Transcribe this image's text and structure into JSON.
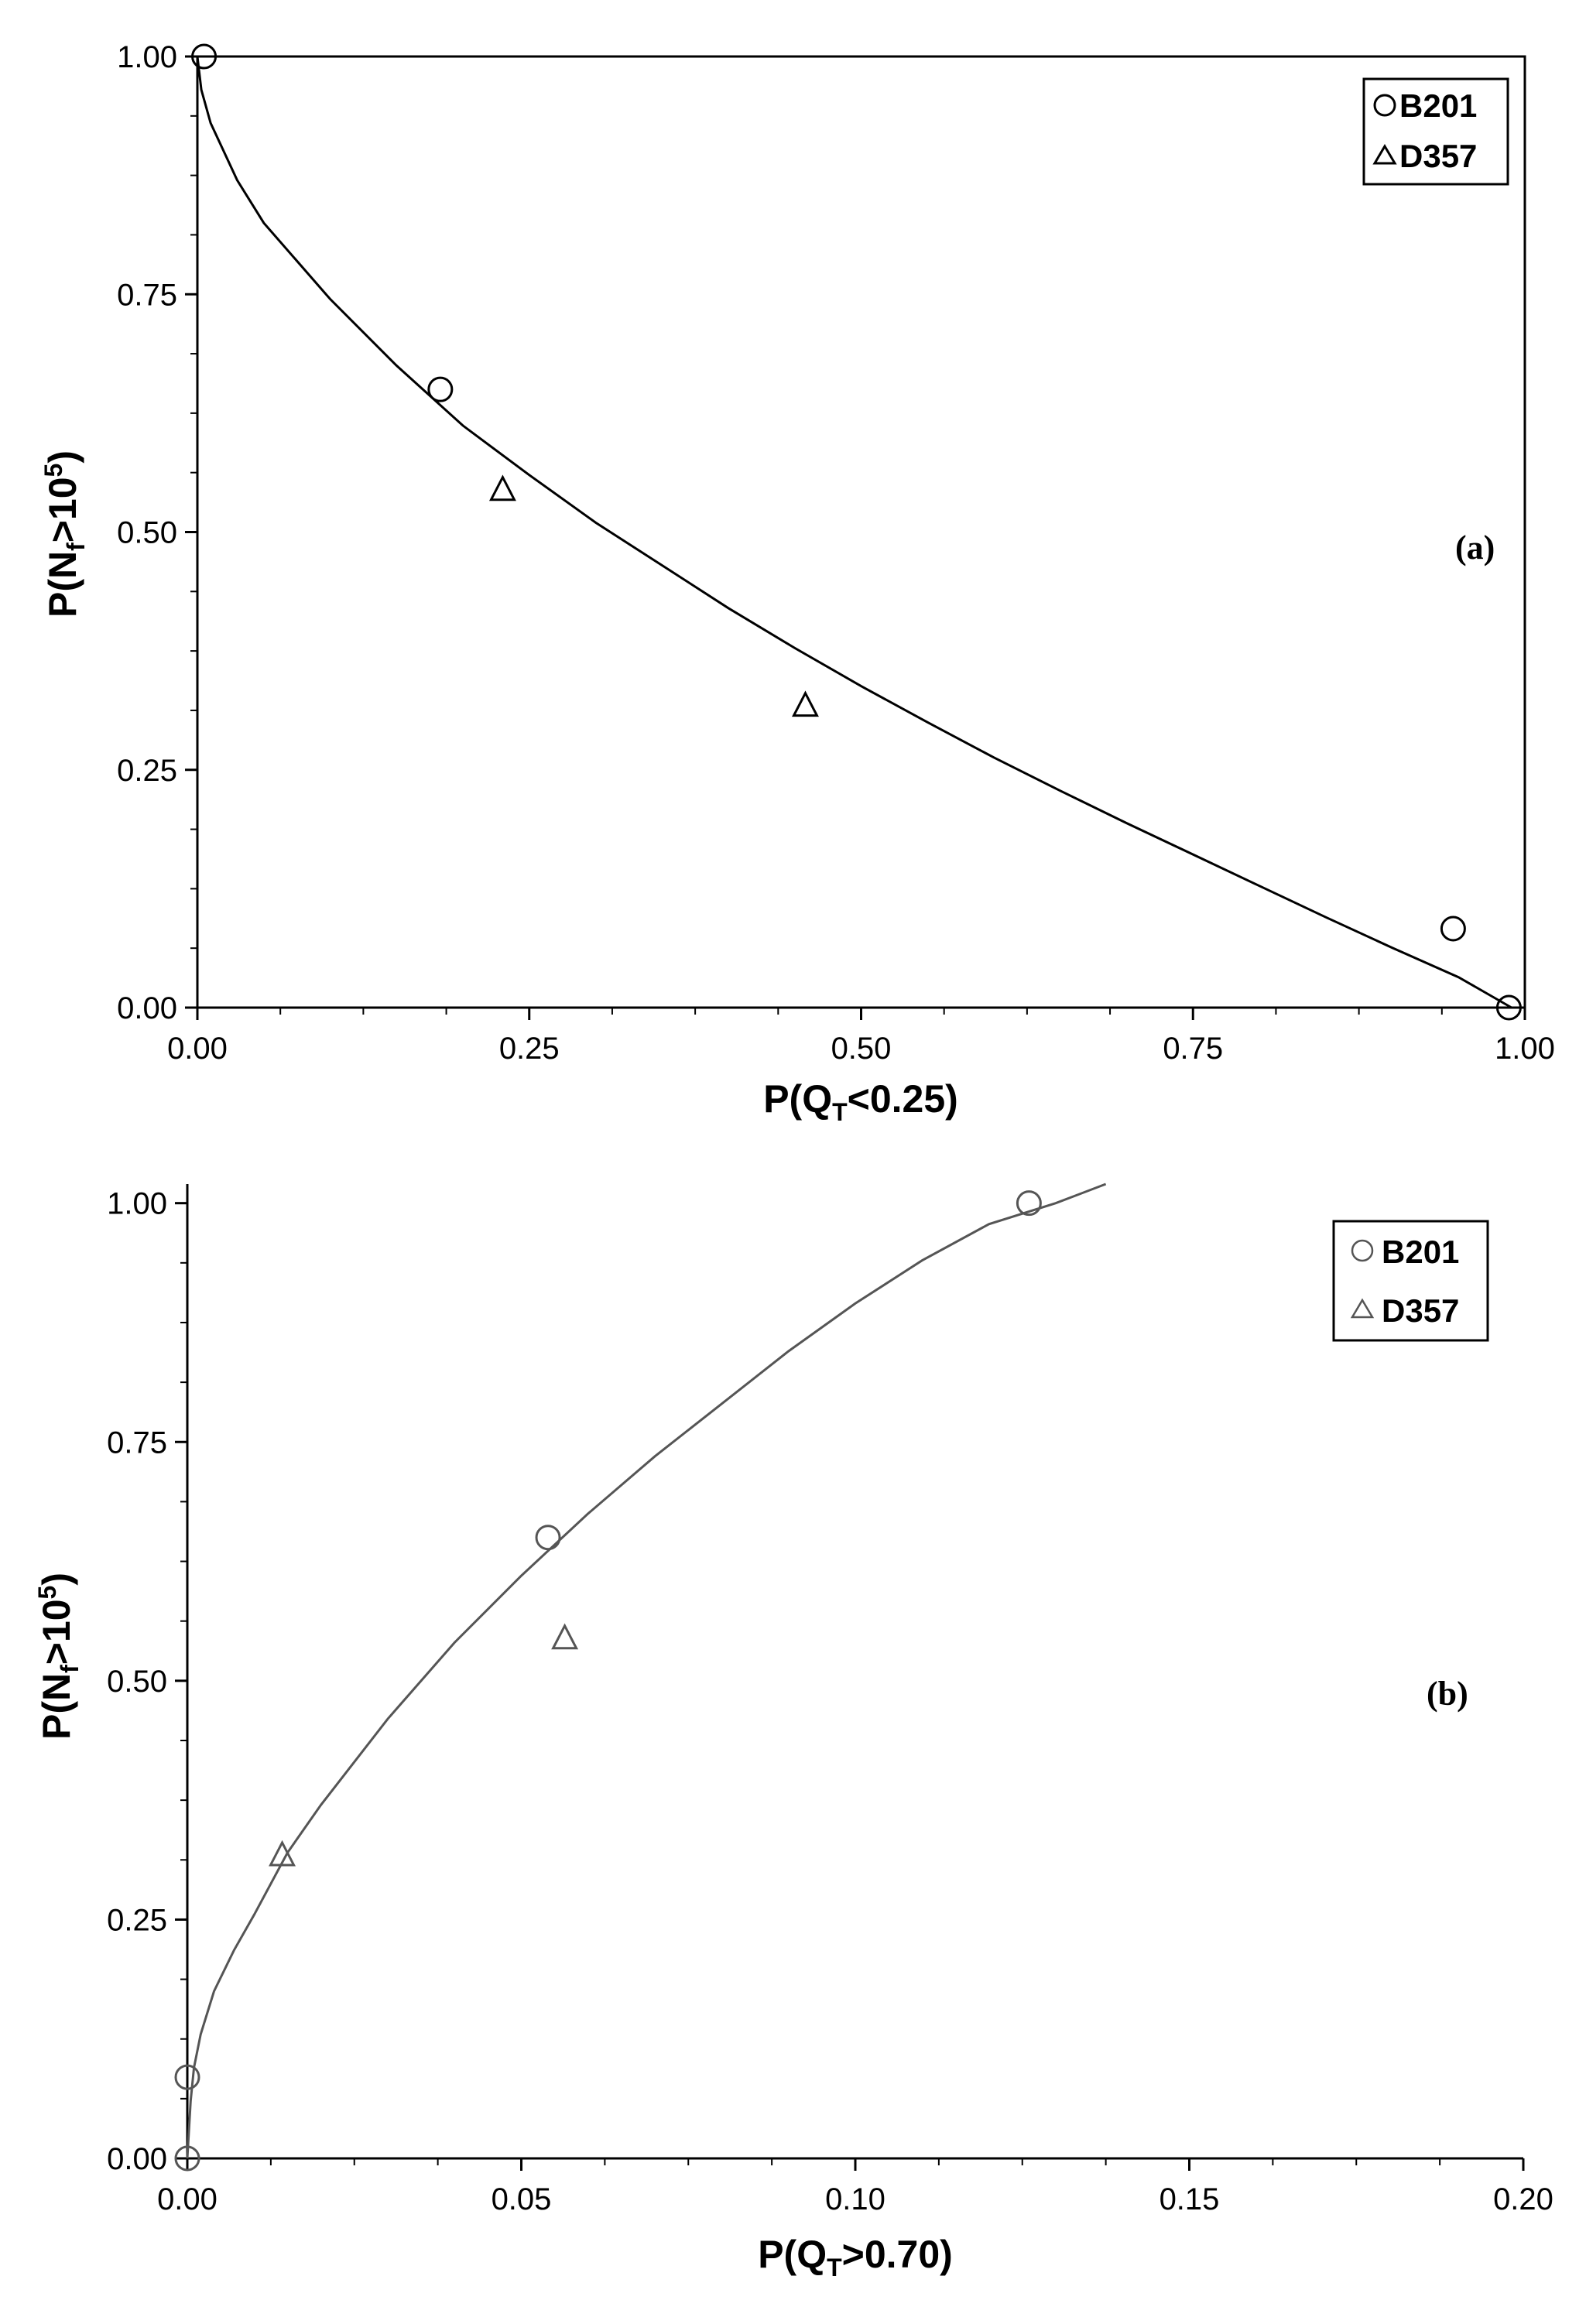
{
  "chart_data": [
    {
      "id": "a",
      "type": "scatter",
      "panel_label": "(a)",
      "xlabel": {
        "main": "P(Q",
        "sub": "T",
        "tail": "<0.25)"
      },
      "ylabel": {
        "main": "P(N",
        "sub": "f",
        "mid": ">10",
        "sup": "5",
        "tail": ")"
      },
      "xlim": [
        0,
        1
      ],
      "ylim": [
        0,
        1
      ],
      "xticks": [
        "0.00",
        "0.25",
        "0.50",
        "0.75",
        "1.00"
      ],
      "yticks": [
        "0.00",
        "0.25",
        "0.50",
        "0.75",
        "1.00"
      ],
      "grid": false,
      "legend_position": "top-right",
      "series": [
        {
          "name": "B201",
          "marker": "circle",
          "points": [
            [
              0.005,
              1.0
            ],
            [
              0.183,
              0.65
            ],
            [
              0.946,
              0.083
            ],
            [
              0.988,
              0.0
            ]
          ]
        },
        {
          "name": "D357",
          "marker": "triangle",
          "points": [
            [
              0.23,
              0.545
            ],
            [
              0.458,
              0.318
            ]
          ]
        }
      ],
      "fit_curve": [
        [
          0,
          1.0
        ],
        [
          0.003,
          0.965
        ],
        [
          0.01,
          0.93
        ],
        [
          0.03,
          0.87
        ],
        [
          0.05,
          0.825
        ],
        [
          0.1,
          0.745
        ],
        [
          0.15,
          0.675
        ],
        [
          0.2,
          0.612
        ],
        [
          0.25,
          0.56
        ],
        [
          0.3,
          0.51
        ],
        [
          0.35,
          0.465
        ],
        [
          0.4,
          0.42
        ],
        [
          0.45,
          0.378
        ],
        [
          0.5,
          0.338
        ],
        [
          0.55,
          0.3
        ],
        [
          0.6,
          0.263
        ],
        [
          0.65,
          0.228
        ],
        [
          0.7,
          0.194
        ],
        [
          0.75,
          0.161
        ],
        [
          0.8,
          0.128
        ],
        [
          0.85,
          0.095
        ],
        [
          0.9,
          0.063
        ],
        [
          0.95,
          0.032
        ],
        [
          0.99,
          0.0
        ]
      ]
    },
    {
      "id": "b",
      "type": "scatter",
      "panel_label": "(b)",
      "xlabel": {
        "main": "P(Q",
        "sub": "T",
        "tail": ">0.70)"
      },
      "ylabel": {
        "main": "P(N",
        "sub": "f",
        "mid": ">10",
        "sup": "5",
        "tail": ")"
      },
      "xlim": [
        0,
        0.2
      ],
      "ylim": [
        0,
        1.02
      ],
      "xticks": [
        "0.00",
        "0.05",
        "0.10",
        "0.15",
        "0.20"
      ],
      "yticks": [
        "0.00",
        "0.25",
        "0.50",
        "0.75",
        "1.00"
      ],
      "grid": false,
      "legend_position": "top-right",
      "series": [
        {
          "name": "B201",
          "marker": "circle",
          "points": [
            [
              0.0,
              0.085
            ],
            [
              0.0,
              0.0
            ],
            [
              0.054,
              0.65
            ],
            [
              0.126,
              1.0
            ]
          ]
        },
        {
          "name": "D357",
          "marker": "triangle",
          "points": [
            [
              0.0142,
              0.318
            ],
            [
              0.0565,
              0.545
            ]
          ]
        }
      ],
      "fit_curve": [
        [
          0,
          0.0
        ],
        [
          0.0005,
          0.06
        ],
        [
          0.001,
          0.095
        ],
        [
          0.002,
          0.13
        ],
        [
          0.004,
          0.175
        ],
        [
          0.007,
          0.218
        ],
        [
          0.01,
          0.255
        ],
        [
          0.015,
          0.32
        ],
        [
          0.02,
          0.37
        ],
        [
          0.03,
          0.46
        ],
        [
          0.04,
          0.54
        ],
        [
          0.05,
          0.61
        ],
        [
          0.06,
          0.675
        ],
        [
          0.07,
          0.735
        ],
        [
          0.08,
          0.79
        ],
        [
          0.09,
          0.845
        ],
        [
          0.1,
          0.895
        ],
        [
          0.11,
          0.94
        ],
        [
          0.12,
          0.978
        ],
        [
          0.13,
          1.0
        ],
        [
          0.1375,
          1.02
        ]
      ]
    }
  ]
}
